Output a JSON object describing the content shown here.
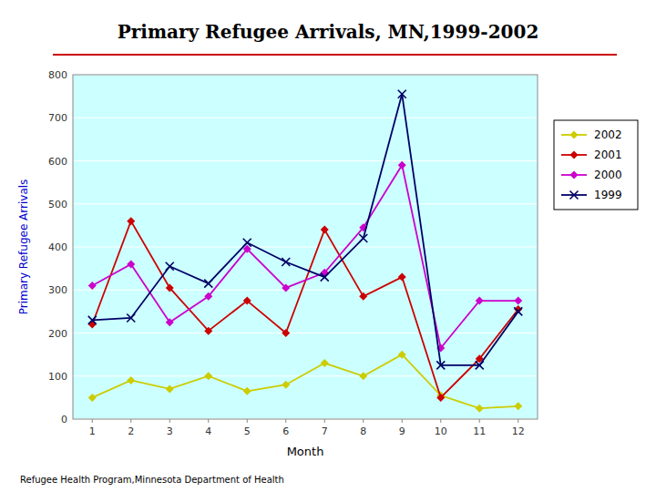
{
  "chart_data": {
    "type": "line",
    "title": "Primary Refugee Arrivals, MN,1999-2002",
    "x_label": "Month",
    "y_label": "Primary Refugee Arrivals",
    "annotations": [
      "Refugee Health Program,Minnesota Department of Health"
    ],
    "x": [
      1,
      2,
      3,
      4,
      5,
      6,
      7,
      8,
      9,
      10,
      11,
      12
    ],
    "series": [
      {
        "name": "2002",
        "color": "#cccc00",
        "marker": "diamond",
        "line_style": "solid",
        "values": [
          50,
          90,
          70,
          100,
          65,
          80,
          130,
          100,
          150,
          55,
          25,
          30
        ]
      },
      {
        "name": "2001",
        "color": "#cc0000",
        "marker": "diamond",
        "line_style": "solid",
        "values": [
          220,
          460,
          305,
          205,
          275,
          200,
          440,
          285,
          330,
          50,
          140,
          255
        ]
      },
      {
        "name": "2000",
        "color": "#cc00cc",
        "marker": "diamond",
        "line_style": "solid",
        "values": [
          310,
          360,
          225,
          285,
          395,
          305,
          340,
          445,
          590,
          165,
          275,
          275
        ]
      },
      {
        "name": "1999",
        "color": "#000066",
        "marker": "x",
        "line_style": "solid",
        "values": [
          230,
          235,
          355,
          315,
          410,
          365,
          330,
          420,
          755,
          125,
          125,
          250
        ]
      }
    ],
    "xlim": [
      0.5,
      12.5
    ],
    "xticks": [
      1,
      2,
      3,
      4,
      5,
      6,
      7,
      8,
      9,
      10,
      11,
      12
    ],
    "ylim": [
      0,
      800
    ],
    "yticks": [
      0,
      100,
      200,
      300,
      400,
      500,
      600,
      700,
      800
    ],
    "grid": true,
    "legend": "right"
  }
}
